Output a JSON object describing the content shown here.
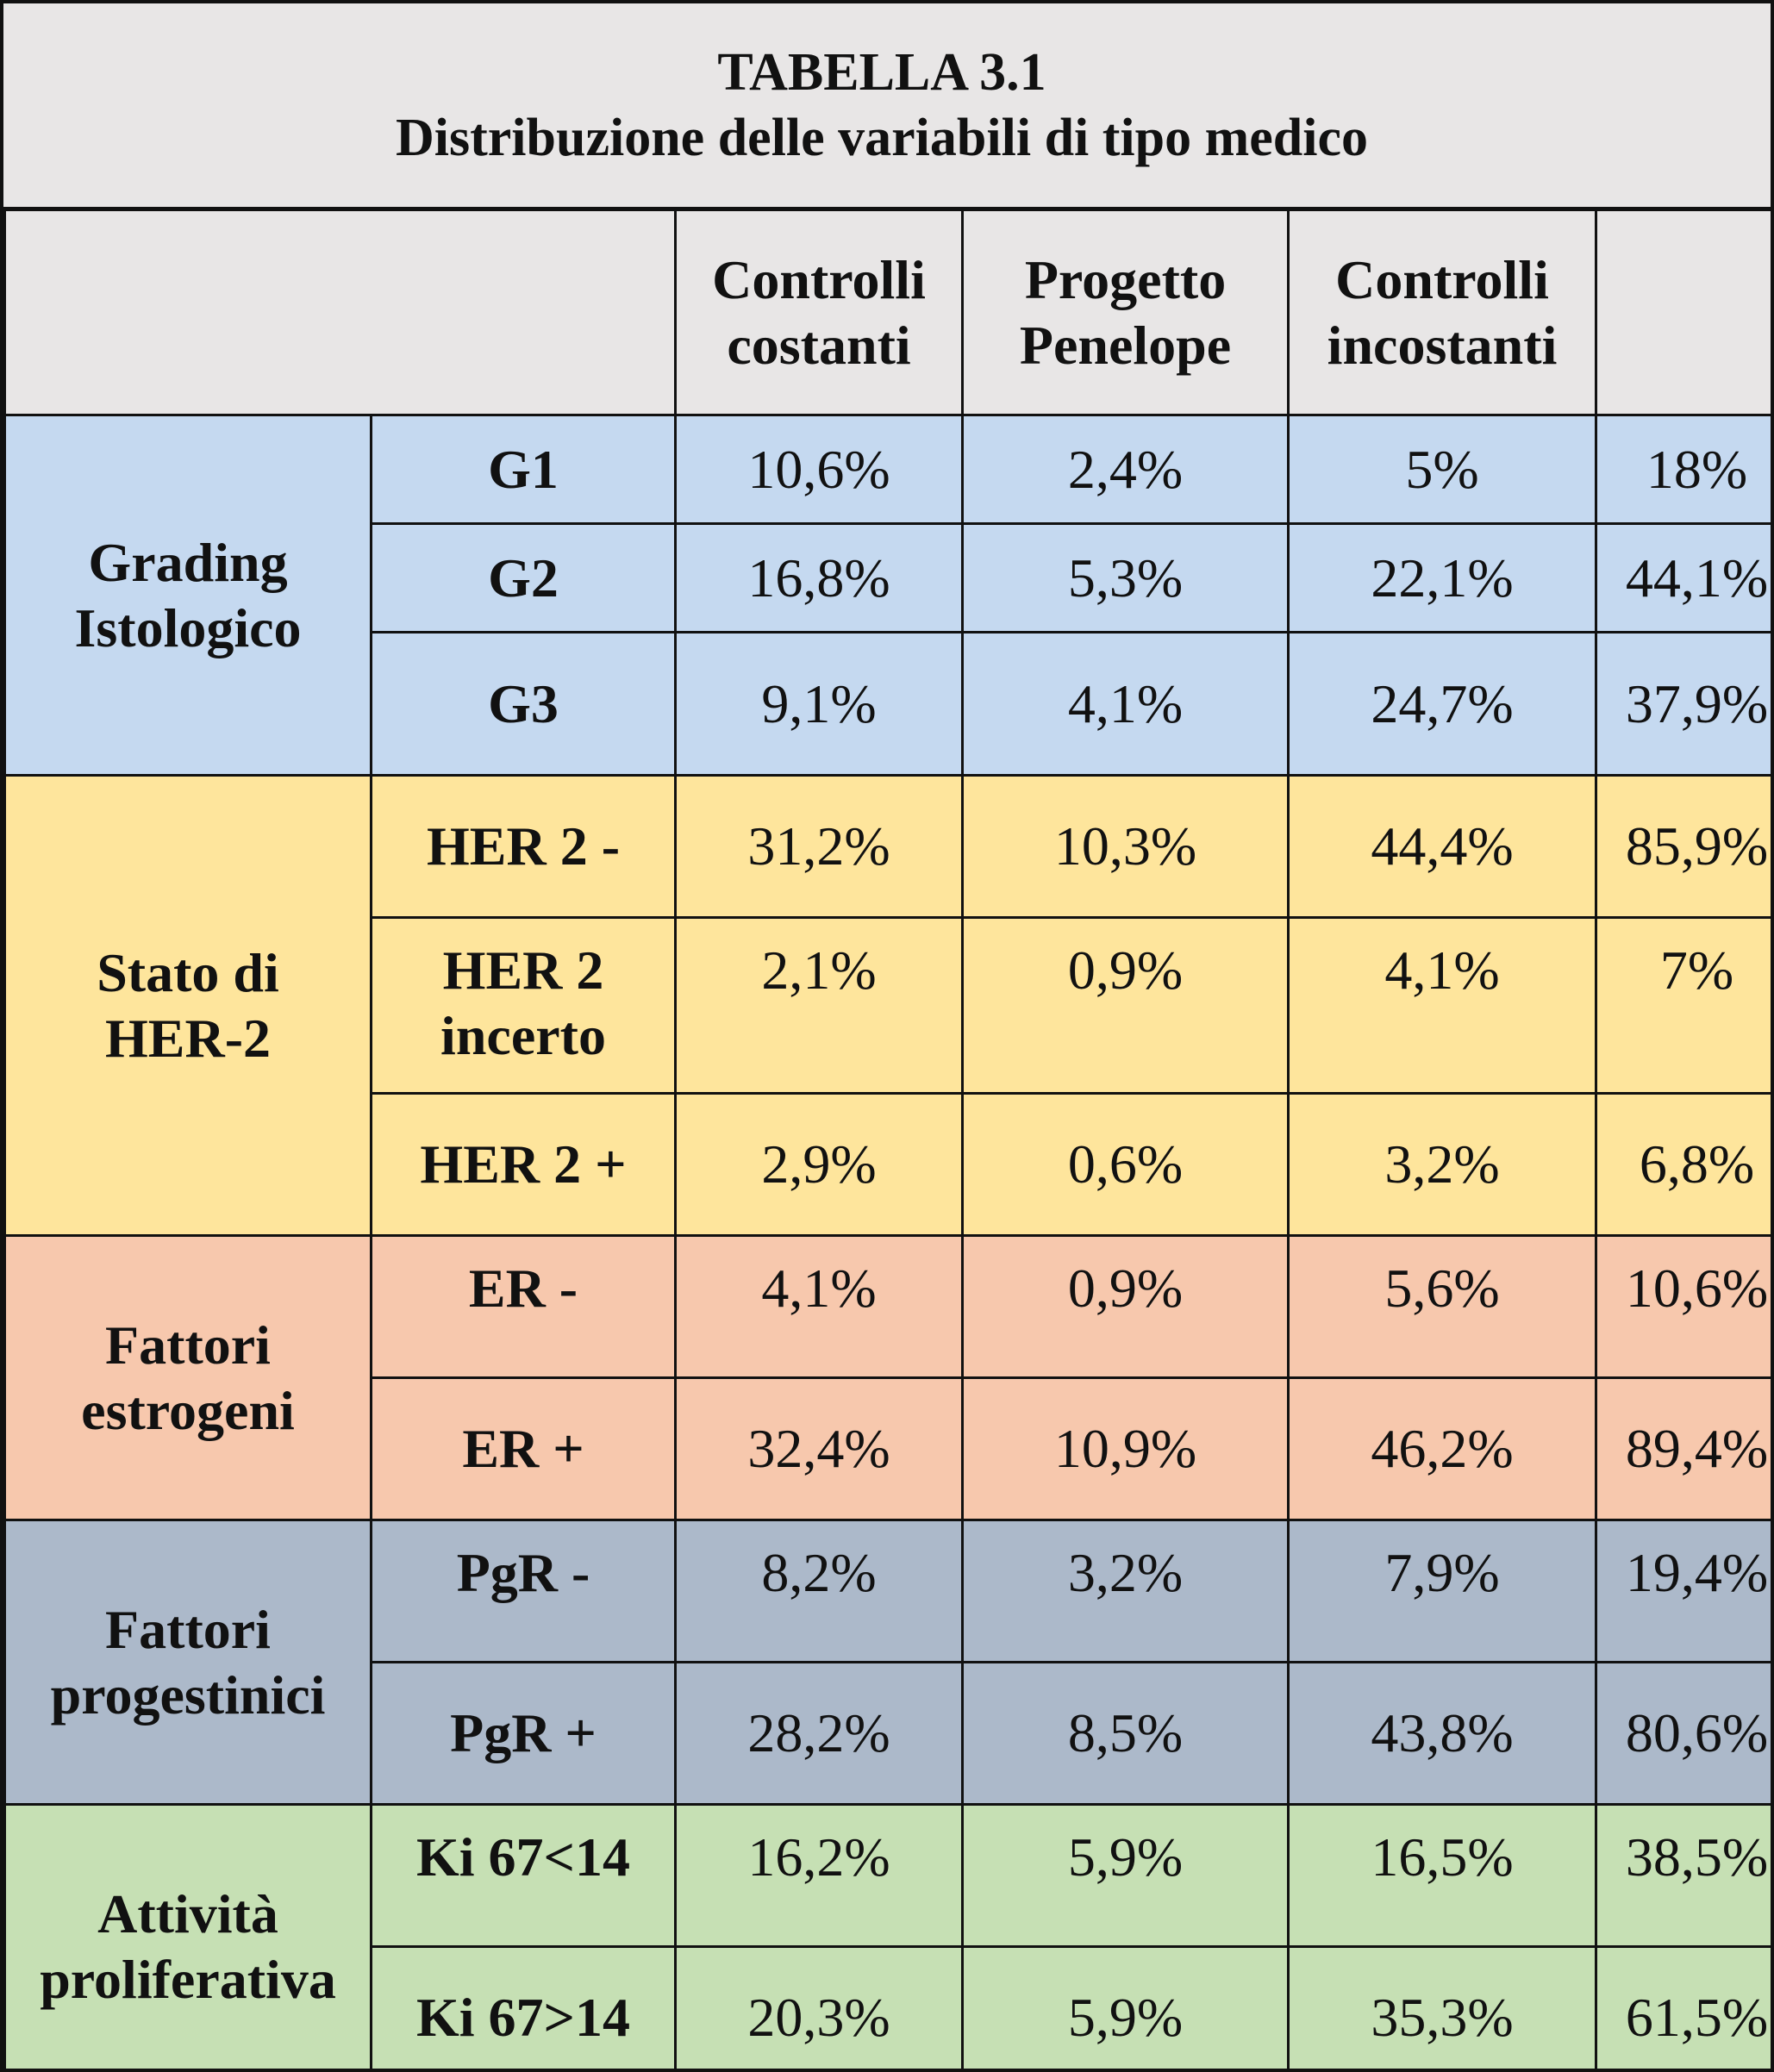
{
  "title": {
    "line1": "TABELLA 3.1",
    "line2": "Distribuzione delle variabili di tipo medico"
  },
  "columns": {
    "c1": [
      "Controlli",
      "costanti"
    ],
    "c2": [
      "Progetto",
      "Penelope"
    ],
    "c3": [
      "Controlli",
      "incostanti"
    ],
    "c4": ""
  },
  "groups": [
    {
      "label": [
        "Grading",
        "Istologico"
      ],
      "color": "#c5d9f0",
      "rows": [
        {
          "sub": [
            "G1"
          ],
          "values": [
            "10,6%",
            "2,4%",
            "5%",
            "18%"
          ]
        },
        {
          "sub": [
            "G2"
          ],
          "values": [
            "16,8%",
            "5,3%",
            "22,1%",
            "44,1%"
          ]
        },
        {
          "sub": [
            "G3"
          ],
          "values": [
            "9,1%",
            "4,1%",
            "24,7%",
            "37,9%"
          ]
        }
      ]
    },
    {
      "label": [
        "Stato di",
        "HER-2"
      ],
      "color": "#fee59c",
      "rows": [
        {
          "sub": [
            "HER 2 -"
          ],
          "values": [
            "31,2%",
            "10,3%",
            "44,4%",
            "85,9%"
          ]
        },
        {
          "sub": [
            "HER 2",
            "incerto"
          ],
          "values": [
            "2,1%",
            "0,9%",
            "4,1%",
            "7%"
          ]
        },
        {
          "sub": [
            "HER 2 +"
          ],
          "values": [
            "2,9%",
            "0,6%",
            "3,2%",
            "6,8%"
          ]
        }
      ]
    },
    {
      "label": [
        "Fattori",
        "estrogeni"
      ],
      "color": "#f7c8ad",
      "rows": [
        {
          "sub": [
            "ER -"
          ],
          "values": [
            "4,1%",
            "0,9%",
            "5,6%",
            "10,6%"
          ]
        },
        {
          "sub": [
            "ER +"
          ],
          "values": [
            "32,4%",
            "10,9%",
            "46,2%",
            "89,4%"
          ]
        }
      ]
    },
    {
      "label": [
        "Fattori",
        "progestinici"
      ],
      "color": "#acb9ca",
      "rows": [
        {
          "sub": [
            "PgR -"
          ],
          "values": [
            "8,2%",
            "3,2%",
            "7,9%",
            "19,4%"
          ]
        },
        {
          "sub": [
            "PgR +"
          ],
          "values": [
            "28,2%",
            "8,5%",
            "43,8%",
            "80,6%"
          ]
        }
      ]
    },
    {
      "label": [
        "Attività",
        "proliferativa"
      ],
      "color": "#c6e0b4",
      "rows": [
        {
          "sub": [
            "Ki 67<14"
          ],
          "values": [
            "16,2%",
            "5,9%",
            "16,5%",
            "38,5%"
          ]
        },
        {
          "sub": [
            "Ki 67>14"
          ],
          "values": [
            "20,3%",
            "5,9%",
            "35,3%",
            "61,5%"
          ]
        }
      ]
    }
  ]
}
